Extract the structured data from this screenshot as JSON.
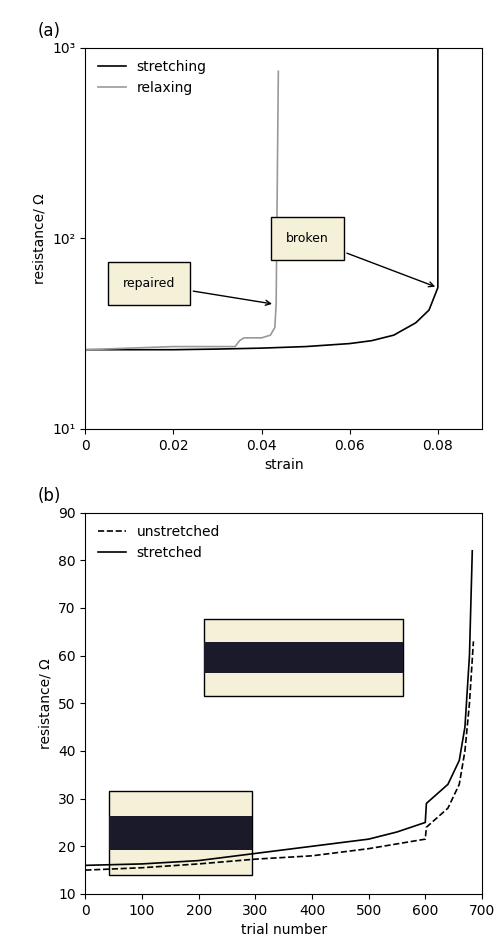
{
  "chart_data": [
    {
      "type": "line",
      "panel": "(a)",
      "x_label": "strain",
      "y_label": "resistance/ Ω",
      "log": "y",
      "legend": "upper left",
      "xlim": [
        0,
        0.09
      ],
      "xticks": [
        0,
        0.02,
        0.04,
        0.06,
        0.08
      ],
      "ylim": [
        10,
        1000
      ],
      "yticks": [
        {
          "value": 10,
          "label": "10¹"
        },
        {
          "value": 100,
          "label": "10²"
        },
        {
          "value": 1000,
          "label": "10³"
        }
      ],
      "series": [
        {
          "name": "stretching",
          "color": "#000000",
          "line_style": "solid",
          "x": [
            0,
            0.01,
            0.02,
            0.03,
            0.04,
            0.05,
            0.06,
            0.065,
            0.07,
            0.075,
            0.078,
            0.08,
            0.08
          ],
          "values": [
            26,
            26,
            26,
            26.2,
            26.5,
            27,
            28,
            29,
            31,
            36,
            42,
            55,
            1000
          ]
        },
        {
          "name": "relaxing",
          "color": "#999999",
          "line_style": "solid",
          "x": [
            0.0438,
            0.0433,
            0.043,
            0.042,
            0.04,
            0.036,
            0.035,
            0.034,
            0.03,
            0.02,
            0.01,
            0
          ],
          "values": [
            750,
            45,
            34,
            31,
            30,
            30,
            29,
            27,
            27,
            27,
            26.5,
            26
          ]
        }
      ],
      "annotations": [
        {
          "text": "repaired",
          "x": 0.043,
          "y": 45
        },
        {
          "text": "broken",
          "x": 0.08,
          "y": 55
        }
      ]
    },
    {
      "type": "line",
      "panel": "(b)",
      "x_label": "trial number",
      "y_label": "resistance/ Ω",
      "legend": "upper left",
      "xlim": [
        0,
        700
      ],
      "xticks": [
        0,
        100,
        200,
        300,
        400,
        500,
        600,
        700
      ],
      "ylim": [
        10,
        90
      ],
      "yticks": [
        10,
        20,
        30,
        40,
        50,
        60,
        70,
        80,
        90
      ],
      "series": [
        {
          "name": "unstretched",
          "color": "#000000",
          "line_style": "dashed",
          "x": [
            0,
            100,
            200,
            300,
            400,
            500,
            600,
            602,
            640,
            660,
            670,
            678,
            685
          ],
          "values": [
            15,
            15.5,
            16.3,
            17.3,
            18,
            19.5,
            21.5,
            24,
            28,
            33,
            40,
            50,
            63
          ]
        },
        {
          "name": "stretched",
          "color": "#000000",
          "line_style": "solid",
          "x": [
            0,
            100,
            200,
            300,
            400,
            500,
            550,
            600,
            602,
            640,
            660,
            670,
            678,
            683
          ],
          "values": [
            16,
            16.3,
            17,
            18.5,
            20,
            21.5,
            23,
            25,
            29,
            33,
            38,
            45,
            60,
            82
          ]
        }
      ]
    }
  ]
}
